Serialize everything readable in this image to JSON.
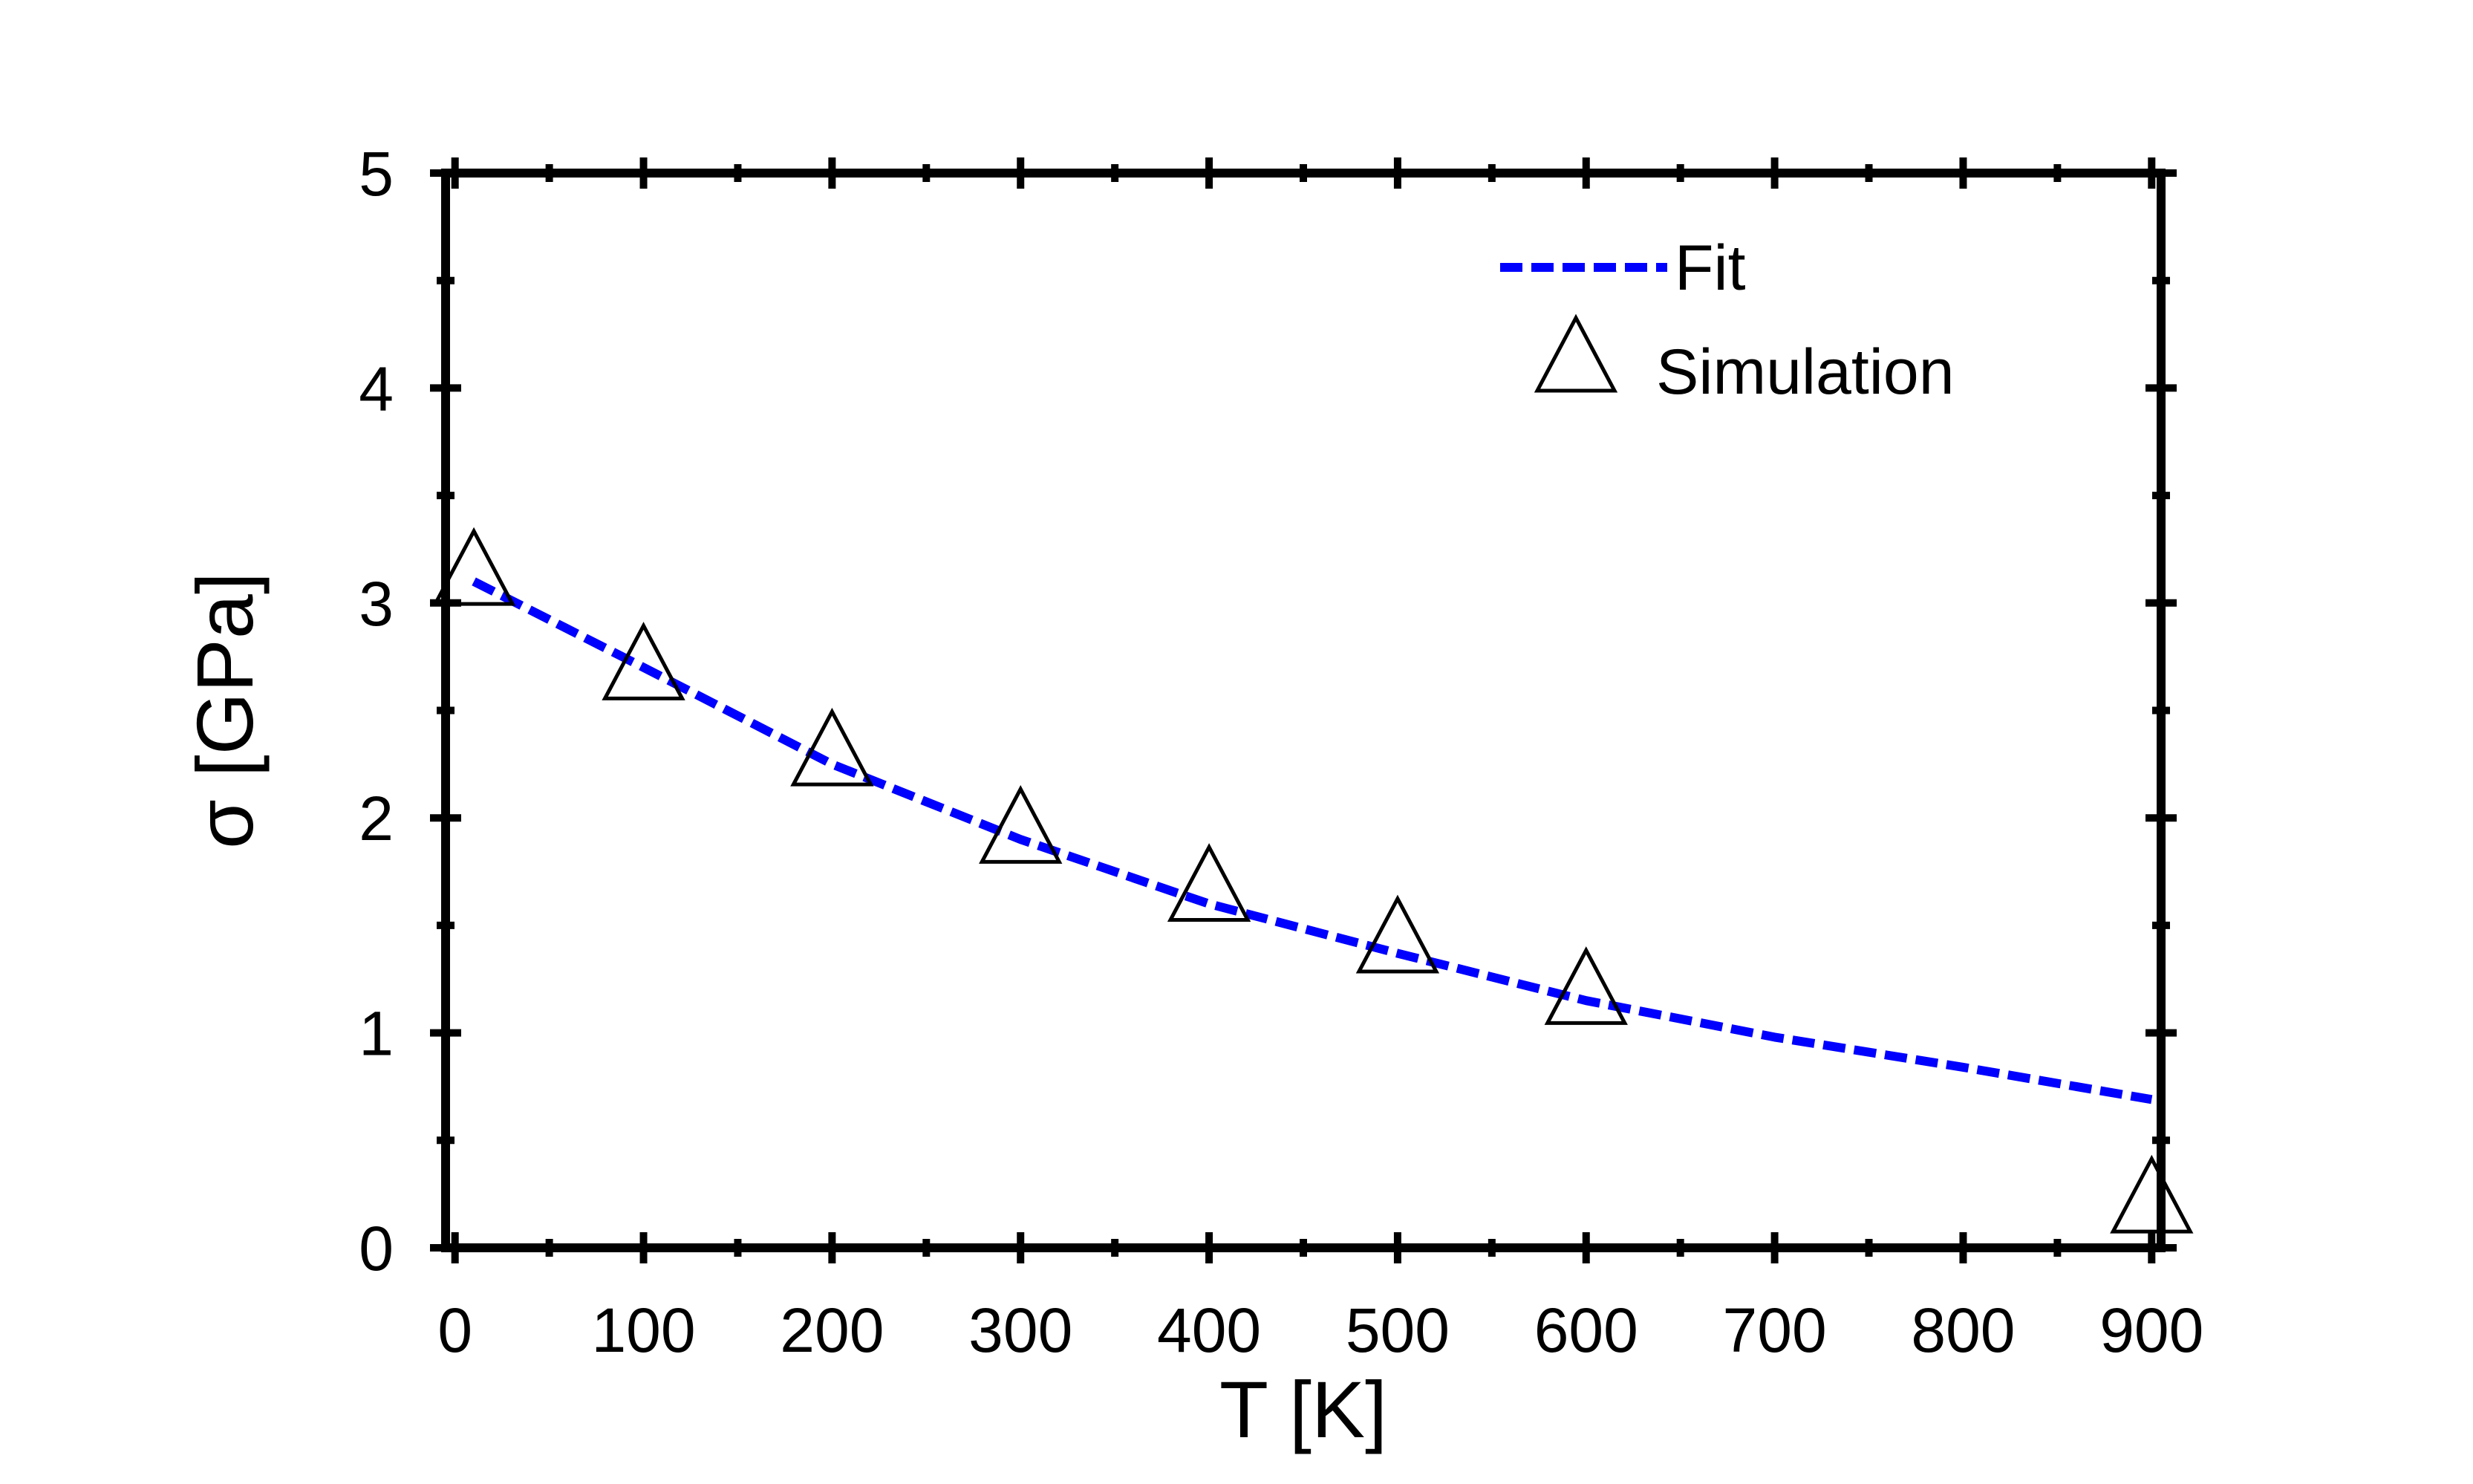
{
  "chart_data": {
    "type": "scatter",
    "xlabel": "T [K]",
    "ylabel": "σ [GPa]",
    "xlim": [
      -5,
      905
    ],
    "ylim": [
      0,
      5
    ],
    "x_ticks": [
      0,
      100,
      200,
      300,
      400,
      500,
      600,
      700,
      800,
      900
    ],
    "y_ticks": [
      0,
      1,
      2,
      3,
      4,
      5
    ],
    "grid": false,
    "legend_position": "top-right",
    "series": [
      {
        "name": "Fit",
        "kind": "line",
        "style": "dashed",
        "color": "#0000ff",
        "x": [
          10,
          100,
          200,
          300,
          400,
          500,
          600,
          700,
          800,
          900
        ],
        "y": [
          3.1,
          2.7,
          2.25,
          1.9,
          1.6,
          1.37,
          1.15,
          0.98,
          0.84,
          0.69
        ]
      },
      {
        "name": "Simulation",
        "kind": "scatter",
        "marker": "open-triangle",
        "color": "#000000",
        "x": [
          10,
          100,
          200,
          300,
          400,
          500,
          600,
          900
        ],
        "y": [
          3.12,
          2.68,
          2.28,
          1.92,
          1.65,
          1.41,
          1.17,
          0.2
        ]
      }
    ]
  }
}
